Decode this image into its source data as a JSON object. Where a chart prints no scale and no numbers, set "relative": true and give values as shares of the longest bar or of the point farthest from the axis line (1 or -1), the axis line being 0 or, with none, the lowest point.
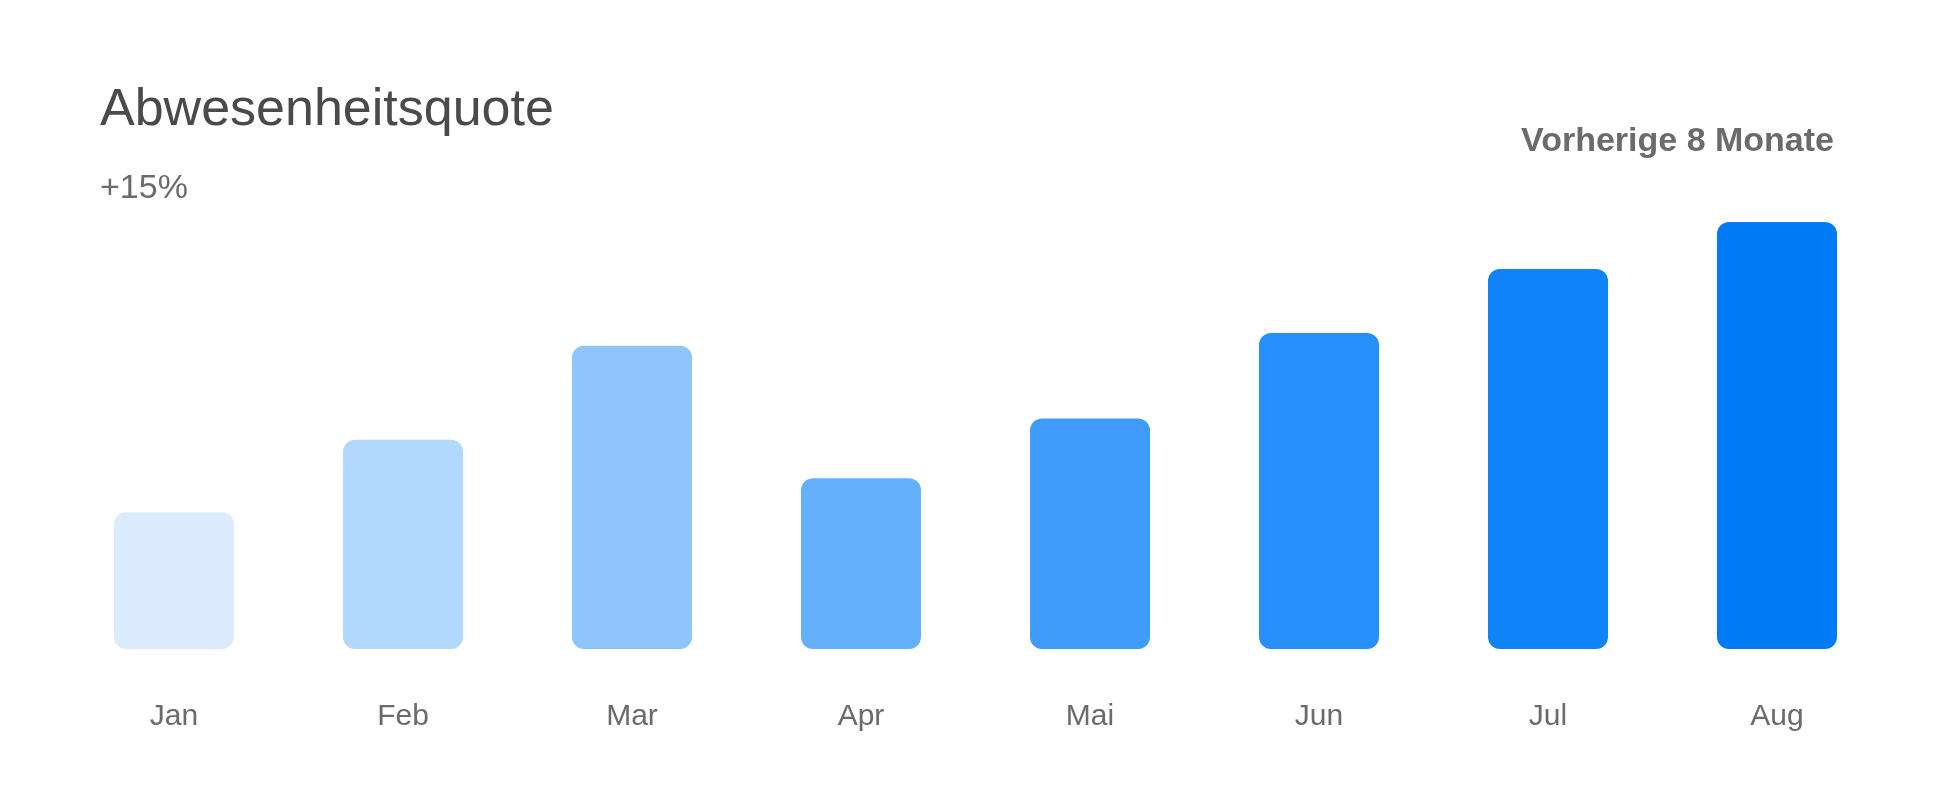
{
  "chart_data": {
    "type": "bar",
    "title": "Abwesenheitsquote",
    "subtitle": "+15%",
    "annotations": [
      "Vorherige 8 Monate"
    ],
    "categories": [
      "Jan",
      "Feb",
      "Mar",
      "Apr",
      "Mai",
      "Jun",
      "Jul",
      "Aug"
    ],
    "relative": true,
    "values": [
      0.32,
      0.49,
      0.71,
      0.4,
      0.54,
      0.74,
      0.89,
      1
    ],
    "colors": [
      "#dbeafd",
      "#b3d8fd",
      "#8ec5fd",
      "#65b0fb",
      "#3f9cfa",
      "#2690fa",
      "#0f84f8",
      "#007bf8"
    ]
  }
}
